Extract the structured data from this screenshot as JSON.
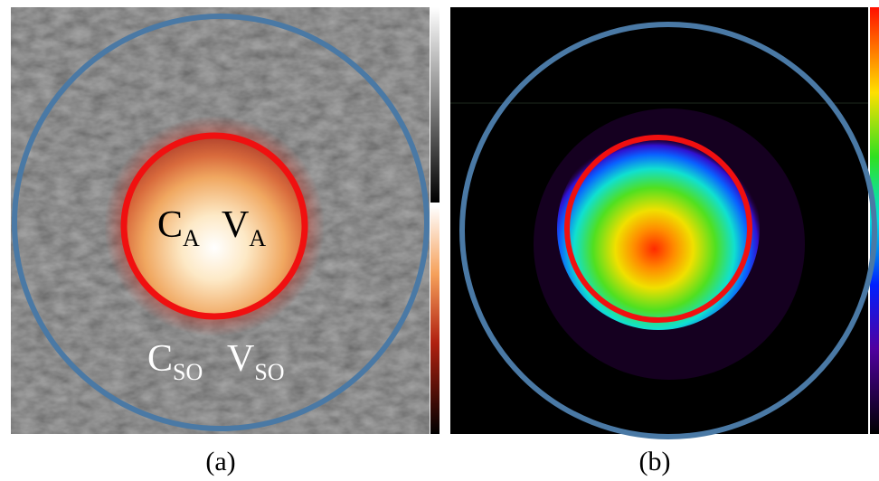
{
  "panels": [
    {
      "label": "(a)",
      "annotations": [
        {
          "symbol": "C",
          "subscript": "A"
        },
        {
          "symbol": "V",
          "subscript": "A"
        },
        {
          "symbol": "C",
          "subscript": "SO"
        },
        {
          "symbol": "V",
          "subscript": "SO"
        }
      ]
    },
    {
      "label": "(b)"
    }
  ]
}
